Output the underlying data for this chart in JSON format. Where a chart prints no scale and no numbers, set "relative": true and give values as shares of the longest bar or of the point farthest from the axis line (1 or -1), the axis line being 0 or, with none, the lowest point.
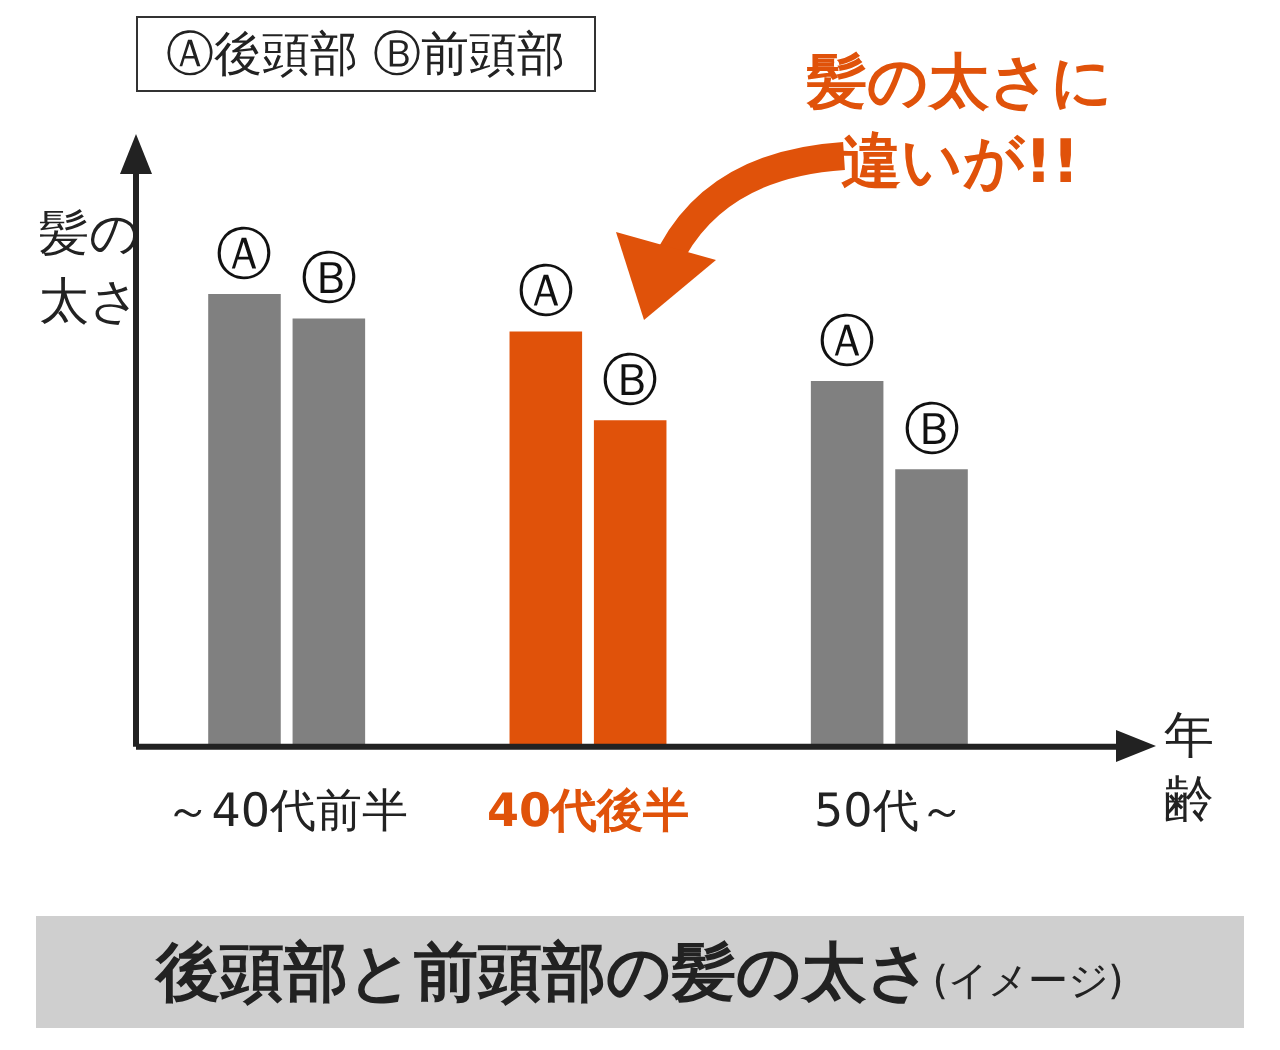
{
  "chart_data": {
    "type": "bar",
    "relative": true,
    "title": "後頭部と前頭部の髪の太さ",
    "subtitle": "(イメージ)",
    "legend_title": "Ⓐ後頭部 Ⓑ前頭部",
    "ylabel": "髪の太さ",
    "xlabel": "年齢",
    "annotations": [
      "髪の太さに違いが!!"
    ],
    "categories": [
      "～40代前半",
      "40代後半",
      "50代～"
    ],
    "series": [
      {
        "name": "Ⓐ",
        "colors": [
          "#808080",
          "#e0520a",
          "#808080"
        ],
        "values": [
          1,
          0.917,
          0.808
        ]
      },
      {
        "name": "Ⓑ",
        "colors": [
          "#808080",
          "#e0520a",
          "#808080"
        ],
        "values": [
          0.946,
          0.721,
          0.613
        ]
      }
    ]
  }
}
